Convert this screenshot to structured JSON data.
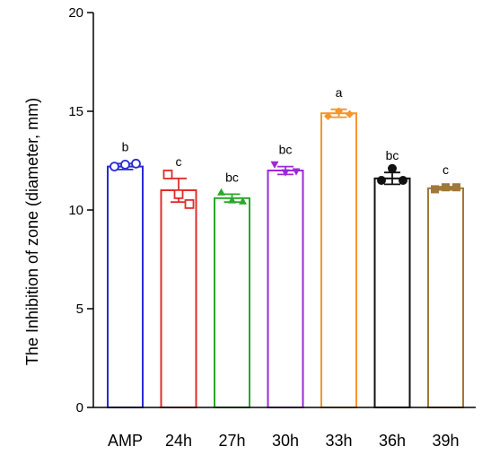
{
  "chart_data": {
    "type": "bar",
    "title": "",
    "xlabel": "",
    "ylabel": "The Inhibition of zone (diameter, mm)",
    "ylim": [
      0,
      20
    ],
    "yticks": [
      0,
      5,
      10,
      15,
      20
    ],
    "grid": false,
    "legend": "none",
    "categories": [
      "AMP",
      "24h",
      "27h",
      "30h",
      "33h",
      "36h",
      "39h"
    ],
    "values": [
      12.2,
      11.0,
      10.6,
      12.0,
      14.9,
      11.6,
      11.1
    ],
    "errors": [
      0.15,
      0.6,
      0.2,
      0.2,
      0.2,
      0.3,
      0.08
    ],
    "letters": [
      "b",
      "c",
      "bc",
      "bc",
      "a",
      "bc",
      "c"
    ],
    "points": [
      [
        12.2,
        12.3,
        12.35
      ],
      [
        11.8,
        10.8,
        10.3
      ],
      [
        10.9,
        10.5,
        10.45
      ],
      [
        12.3,
        11.9,
        11.95
      ],
      [
        14.75,
        15.0,
        14.85
      ],
      [
        11.5,
        12.1,
        11.5
      ],
      [
        11.05,
        11.15,
        11.15
      ]
    ],
    "markers": [
      "circle-open",
      "square-open",
      "triangle-up",
      "triangle-down",
      "diamond",
      "circle",
      "square"
    ],
    "colors": [
      "#2a2ad6",
      "#e02c2c",
      "#2aa82a",
      "#9b2ad6",
      "#f5952a",
      "#111111",
      "#a07838"
    ]
  }
}
